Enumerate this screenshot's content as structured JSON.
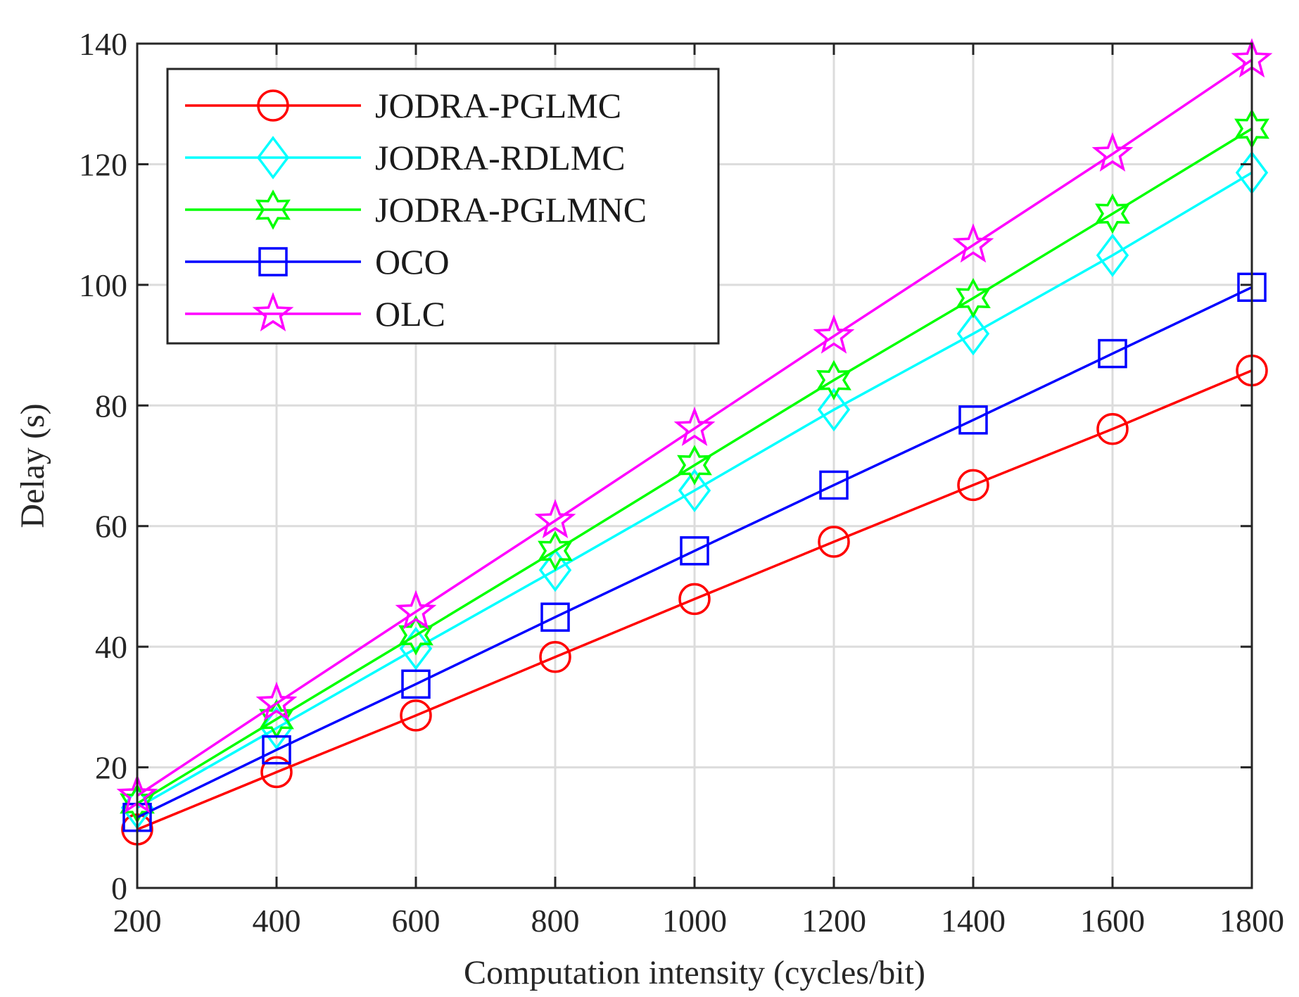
{
  "chart_data": {
    "type": "line",
    "title": "",
    "xlabel": "Computation intensity (cycles/bit)",
    "ylabel": "Delay (s)",
    "x": [
      200,
      400,
      600,
      800,
      1000,
      1200,
      1400,
      1600,
      1800
    ],
    "xlim": [
      200,
      1800
    ],
    "ylim": [
      0,
      140
    ],
    "xticks": [
      "200",
      "400",
      "600",
      "800",
      "1000",
      "1200",
      "1400",
      "1600",
      "1800"
    ],
    "yticks": [
      "0",
      "20",
      "40",
      "60",
      "80",
      "100",
      "120",
      "140"
    ],
    "xtick_values": [
      200,
      400,
      600,
      800,
      1000,
      1200,
      1400,
      1600,
      1800
    ],
    "ytick_values": [
      0,
      20,
      40,
      60,
      80,
      100,
      120,
      140
    ],
    "grid": true,
    "legend_position": "top-left",
    "series": [
      {
        "name": "JODRA-PGLMC",
        "color": "#ff0000",
        "marker": "circle",
        "values": [
          9.7,
          19.2,
          28.6,
          38.3,
          47.9,
          57.4,
          66.8,
          76.1,
          85.8
        ]
      },
      {
        "name": "JODRA-RDLMC",
        "color": "#00ffff",
        "marker": "diamond",
        "values": [
          13.3,
          26.5,
          39.7,
          52.7,
          65.9,
          79.3,
          91.9,
          104.9,
          118.6
        ]
      },
      {
        "name": "JODRA-PGLMNC",
        "color": "#00ff00",
        "marker": "hexagram",
        "values": [
          14.0,
          28.0,
          41.9,
          55.9,
          70.1,
          84.2,
          97.8,
          111.8,
          125.9
        ]
      },
      {
        "name": "OCO",
        "color": "#0000ff",
        "marker": "square",
        "values": [
          11.7,
          22.9,
          33.8,
          44.9,
          55.9,
          66.8,
          77.6,
          88.6,
          99.6
        ]
      },
      {
        "name": "OLC",
        "color": "#ff00ff",
        "marker": "pentagram",
        "values": [
          15.3,
          30.6,
          45.8,
          60.9,
          76.2,
          91.5,
          106.6,
          121.7,
          137.3
        ]
      }
    ]
  }
}
